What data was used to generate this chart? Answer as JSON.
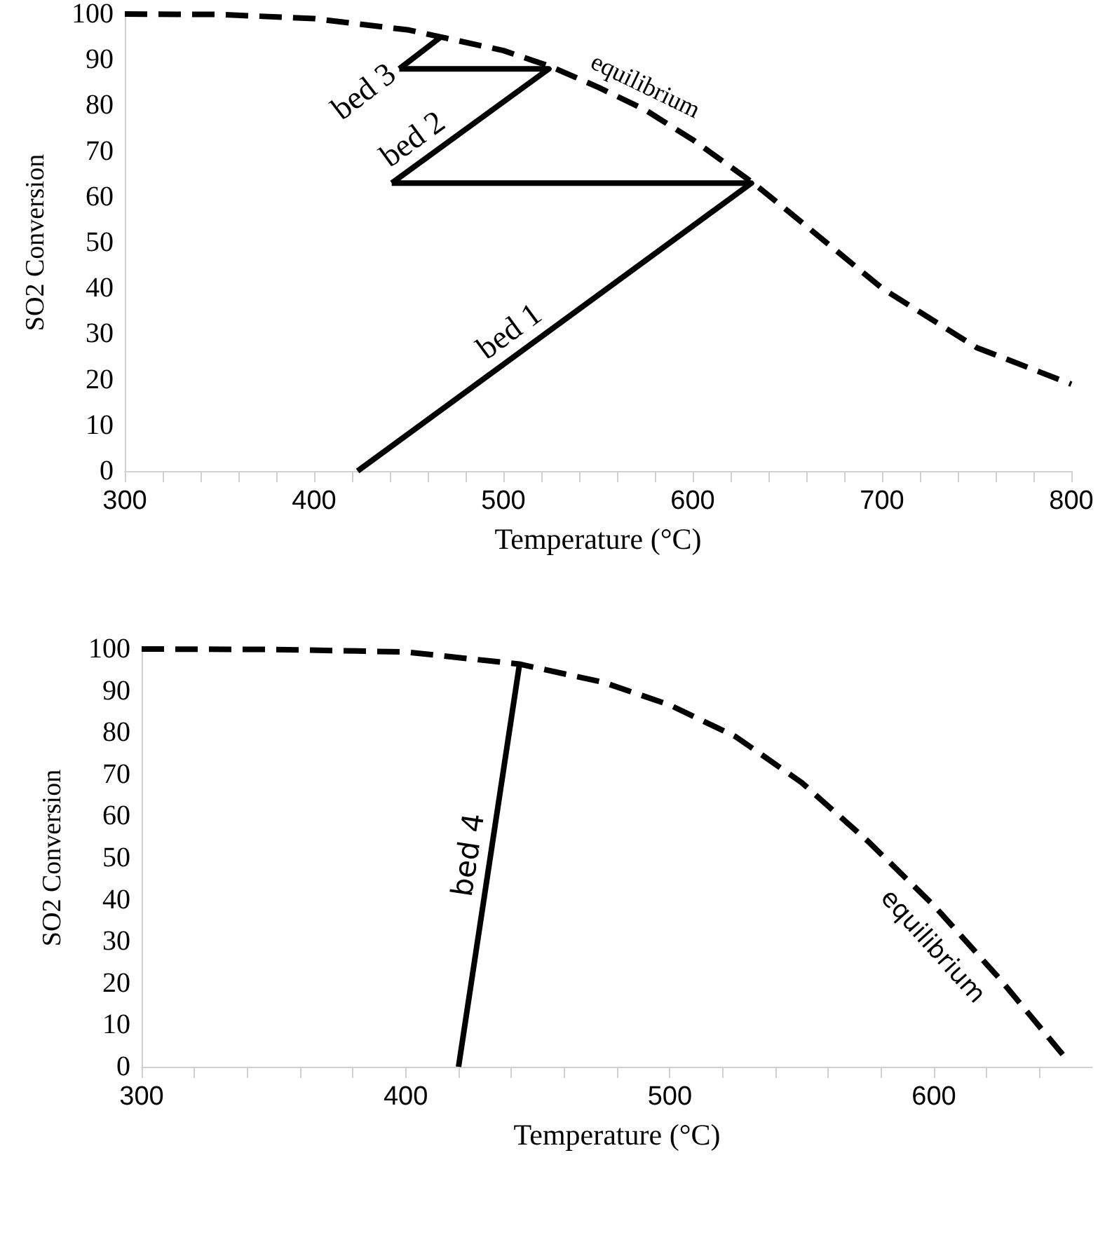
{
  "chart_data": [
    {
      "type": "line",
      "xlabel": "Temperature (°C)",
      "ylabel": "SO2 Conversion",
      "xlim": [
        300,
        800
      ],
      "xticks": [
        300,
        400,
        500,
        600,
        700,
        800
      ],
      "ylim": [
        0,
        100
      ],
      "yticks": [
        0,
        10,
        20,
        30,
        40,
        50,
        60,
        70,
        80,
        90,
        100
      ],
      "grid": false,
      "legend": false,
      "marker": "none",
      "series": [
        {
          "name": "equilibrium",
          "color": "#000000",
          "line_style": "dashed",
          "x": [
            300,
            350,
            400,
            450,
            500,
            525,
            550,
            575,
            600,
            632,
            650,
            700,
            750,
            800
          ],
          "values": [
            100,
            99.9,
            99,
            96.5,
            92,
            88.5,
            84,
            79,
            72.5,
            63,
            57,
            40,
            27,
            19
          ]
        },
        {
          "name": "bed 1",
          "color": "#000000",
          "line_style": "solid",
          "x": [
            423,
            631,
            441
          ],
          "values": [
            0,
            63,
            63
          ]
        },
        {
          "name": "bed 2",
          "color": "#000000",
          "line_style": "solid",
          "x": [
            441,
            524,
            445
          ],
          "values": [
            63,
            88,
            88
          ]
        },
        {
          "name": "bed 3",
          "color": "#000000",
          "line_style": "solid",
          "x": [
            445,
            467
          ],
          "values": [
            88,
            95
          ]
        }
      ]
    },
    {
      "type": "line",
      "xlabel": "Temperature (°C)",
      "ylabel": "SO2 Conversion",
      "xlim": [
        300,
        660
      ],
      "xticks": [
        300,
        400,
        500,
        600
      ],
      "ylim": [
        0,
        100
      ],
      "yticks": [
        0,
        10,
        20,
        30,
        40,
        50,
        60,
        70,
        80,
        90,
        100
      ],
      "grid": false,
      "legend": false,
      "marker": "none",
      "series": [
        {
          "name": "equilibrium",
          "color": "#000000",
          "line_style": "dashed",
          "x": [
            300,
            350,
            400,
            443,
            475,
            500,
            525,
            550,
            575,
            600,
            625,
            650
          ],
          "values": [
            100,
            99.9,
            99.3,
            96.4,
            92,
            86.6,
            79,
            68,
            54,
            38.6,
            21,
            2
          ]
        },
        {
          "name": "bed 4",
          "color": "#000000",
          "line_style": "solid",
          "x": [
            420,
            443
          ],
          "values": [
            0,
            96
          ]
        }
      ]
    }
  ]
}
